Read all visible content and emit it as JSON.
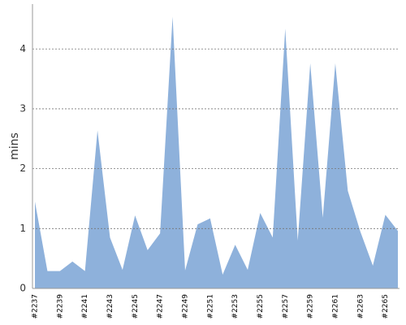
{
  "chart_data": {
    "type": "area",
    "y_label": "mins",
    "categories": [
      "#2237",
      null,
      "#2239",
      null,
      "#2241",
      null,
      "#2243",
      null,
      "#2245",
      null,
      "#2247",
      null,
      "#2249",
      null,
      "#2251",
      null,
      "#2253",
      null,
      "#2255",
      null,
      "#2257",
      null,
      "#2259",
      null,
      "#2261",
      null,
      "#2263",
      null,
      "#2265",
      null
    ],
    "values": [
      1.45,
      0.29,
      0.29,
      0.45,
      0.29,
      2.64,
      0.85,
      0.31,
      1.22,
      0.64,
      0.92,
      4.54,
      0.3,
      1.07,
      1.17,
      0.23,
      0.73,
      0.31,
      1.26,
      0.85,
      4.34,
      0.8,
      3.76,
      1.18,
      3.76,
      1.63,
      0.95,
      0.38,
      1.23,
      0.96
    ],
    "color": "#8eb1db",
    "ylim": [
      0,
      4.75
    ],
    "yticks": [
      0,
      1,
      2,
      3,
      4
    ],
    "grid": true
  }
}
